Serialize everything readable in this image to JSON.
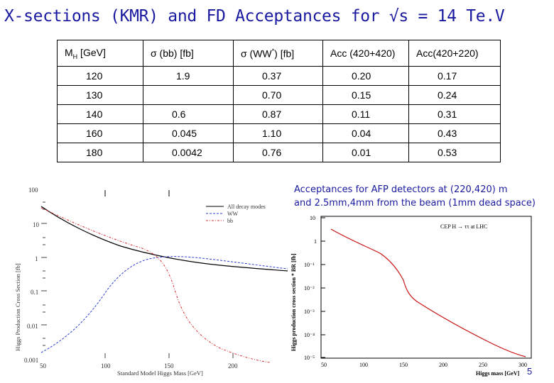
{
  "title": "X-sections (KMR) and FD Acceptances for √s = 14 Te.V",
  "table": {
    "headers": [
      {
        "main": "M",
        "sub": "H",
        "rest": " [GeV]"
      },
      {
        "main": "σ (bb) [fb]",
        "sub": "",
        "rest": ""
      },
      {
        "main": "σ (WW",
        "sub": "*",
        "rest": ") [fb]"
      },
      {
        "main": "Acc (420+420)",
        "sub": "",
        "rest": ""
      },
      {
        "main": "Acc(420+220)",
        "sub": "",
        "rest": ""
      }
    ],
    "rows": [
      [
        "120",
        "1.9",
        "0.37",
        "0.20",
        "0.17"
      ],
      [
        "130",
        "",
        "0.70",
        "0.15",
        "0.24"
      ],
      [
        "140",
        "0.6",
        "0.87",
        "0.11",
        "0.31"
      ],
      [
        "160",
        "0.045",
        "1.10",
        "0.04",
        "0.43"
      ],
      [
        "180",
        "0.0042",
        "0.76",
        "0.01",
        "0.53"
      ]
    ]
  },
  "left_plot": {
    "ylabel": "Higgs Production Cross Section [fb]",
    "xlabel": "Standard Model Higgs Mass [GeV]",
    "yticks": [
      "100",
      "10",
      "1",
      "0.1",
      "0.01",
      "0.001"
    ],
    "xticks": [
      "50",
      "100",
      "150",
      "200"
    ],
    "legend": [
      "All decay modes",
      "WW",
      "bb"
    ]
  },
  "caption": {
    "line1": "Acceptances for AFP detectors at (220,420) m",
    "line2": "and 2.5mm,4mm from the beam (1mm dead space)"
  },
  "right_plot": {
    "title": "CEP H → ττ at LHC",
    "ylabel": "Higgs production cross section * BR [fb]",
    "xlabel": "Higgs mass [GeV]",
    "yticks": [
      "10",
      "1",
      "10⁻¹",
      "10⁻²",
      "10⁻³",
      "10⁻⁴",
      "10⁻⁵"
    ],
    "xticks": [
      "50",
      "100",
      "150",
      "200",
      "250",
      "300"
    ]
  },
  "page_number": "5"
}
